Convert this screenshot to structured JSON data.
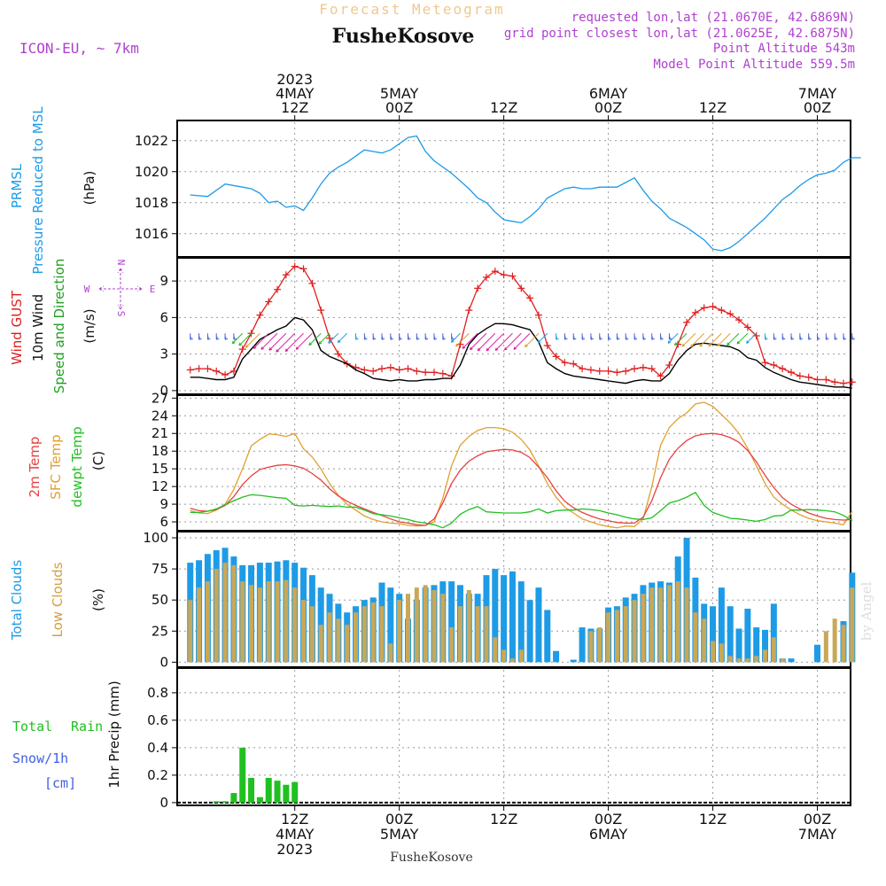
{
  "header": {
    "title": "Forecast Meteogram",
    "location": "FusheKosove",
    "model": "ICON-EU, ~ 7km",
    "requested": "requested lon,lat (21.0670E, 42.6869N)",
    "closest": "grid point closest lon,lat (21.0625E, 42.6875N)",
    "point_alt": "Point Altitude 543m",
    "model_alt": "Model Point Altitude 559.5m",
    "footer": "FusheKosove",
    "credit": "by Angel"
  },
  "time_axis": {
    "top_labels": [
      {
        "h": 12,
        "lines": [
          "2023",
          "4MAY",
          "12Z"
        ]
      },
      {
        "h": 24,
        "lines": [
          "5MAY",
          "00Z"
        ]
      },
      {
        "h": 36,
        "lines": [
          "12Z"
        ]
      },
      {
        "h": 48,
        "lines": [
          "6MAY",
          "00Z"
        ]
      },
      {
        "h": 60,
        "lines": [
          "12Z"
        ]
      },
      {
        "h": 72,
        "lines": [
          "7MAY",
          "00Z"
        ]
      }
    ],
    "bottom_labels": [
      {
        "h": 12,
        "lines": [
          "12Z",
          "4MAY",
          "2023"
        ]
      },
      {
        "h": 24,
        "lines": [
          "00Z",
          "5MAY"
        ]
      },
      {
        "h": 36,
        "lines": [
          "12Z"
        ]
      },
      {
        "h": 48,
        "lines": [
          "00Z",
          "6MAY"
        ]
      },
      {
        "h": 60,
        "lines": [
          "12Z"
        ]
      },
      {
        "h": 72,
        "lines": [
          "00Z",
          "7MAY"
        ]
      }
    ]
  },
  "panel_labels": {
    "pressure": {
      "lines": [
        "PRMSL",
        "Pressure Reduced to MSL"
      ],
      "unit": "(hPa)"
    },
    "wind": {
      "gust": "Wind GUST",
      "wind10": "10m Wind",
      "dir": "Speed and Direction",
      "unit": "(m/s)",
      "compass_w": "W",
      "compass_e": "E",
      "compass_n": "N",
      "compass_s": "S"
    },
    "temp": {
      "t2m": "2m Temp",
      "sfc": "SFC Temp",
      "dew": "dewpt Temp",
      "unit": "(C)"
    },
    "clouds": {
      "total": "Total Clouds",
      "low": "Low Clouds",
      "unit": "(%)"
    },
    "precip": {
      "total": "Total",
      "rain": "Rain",
      "snow": "Snow/1h",
      "cm": "[cm]",
      "unit": "1hr Precip (mm)"
    }
  },
  "colors": {
    "pressure": "#1e9be6",
    "gust": "#e02020",
    "wind": "#000000",
    "t2m": "#e84040",
    "sfc": "#e0a030",
    "dew": "#20c020",
    "total_cloud": "#1e9be6",
    "low_cloud": "#c8a858",
    "precip": "#20c020",
    "purple": "#b040d0",
    "title": "#f0c890"
  },
  "chart_data": [
    {
      "type": "line",
      "title": "PRMSL Pressure Reduced to MSL",
      "ylabel": "(hPa)",
      "ylim": [
        1014.5,
        1023.3
      ],
      "yticks": [
        1016,
        1018,
        1020,
        1022
      ],
      "x_hours": [
        0,
        2,
        3,
        4,
        6,
        7,
        8,
        9,
        10,
        11,
        12,
        13,
        14,
        15,
        16,
        17,
        18,
        19,
        20,
        21,
        22,
        23,
        24,
        25,
        26,
        27,
        28,
        30,
        31,
        32,
        33,
        34,
        35,
        36,
        37,
        38,
        39,
        40,
        41,
        42,
        43,
        44,
        45,
        46,
        47,
        48,
        49,
        50,
        51,
        52,
        53,
        54,
        55,
        56,
        57,
        58,
        59,
        60,
        61,
        62,
        63,
        64,
        65,
        66,
        67,
        68,
        69,
        70,
        71,
        72,
        73,
        74,
        75,
        76,
        77
      ],
      "series": [
        {
          "name": "PRMSL",
          "values": [
            1018.5,
            1018.4,
            1018.8,
            1019.2,
            1019.0,
            1018.9,
            1018.6,
            1018.0,
            1018.1,
            1017.7,
            1017.8,
            1017.5,
            1018.3,
            1019.2,
            1019.9,
            1020.3,
            1020.6,
            1021.0,
            1021.4,
            1021.3,
            1021.2,
            1021.4,
            1021.8,
            1022.2,
            1022.3,
            1021.3,
            1020.7,
            1019.9,
            1019.4,
            1018.9,
            1018.3,
            1018.0,
            1017.4,
            1016.9,
            1016.8,
            1016.7,
            1017.1,
            1017.6,
            1018.3,
            1018.6,
            1018.9,
            1019.0,
            1018.9,
            1018.9,
            1019.0,
            1019.0,
            1019.0,
            1019.3,
            1019.6,
            1018.8,
            1018.1,
            1017.6,
            1017.0,
            1016.7,
            1016.4,
            1016.0,
            1015.6,
            1015.0,
            1014.9,
            1015.1,
            1015.5,
            1016.0,
            1016.5,
            1017.0,
            1017.6,
            1018.2,
            1018.6,
            1019.1,
            1019.5,
            1019.8,
            1019.9,
            1020.1,
            1020.6,
            1020.9,
            1020.9
          ]
        }
      ]
    },
    {
      "type": "line",
      "title": "Wind GUST / 10m Wind Speed and Direction",
      "ylabel": "(m/s)",
      "ylim": [
        -0.3,
        10.9
      ],
      "yticks": [
        0,
        3,
        6,
        9
      ],
      "x_hours": [
        0,
        1,
        2,
        3,
        4,
        5,
        6,
        7,
        8,
        9,
        10,
        11,
        12,
        13,
        14,
        15,
        16,
        17,
        18,
        19,
        20,
        21,
        22,
        23,
        24,
        25,
        26,
        27,
        28,
        29,
        30,
        31,
        32,
        33,
        34,
        35,
        36,
        37,
        38,
        39,
        40,
        41,
        42,
        43,
        44,
        45,
        46,
        47,
        48,
        49,
        50,
        51,
        52,
        53,
        54,
        55,
        56,
        57,
        58,
        59,
        60,
        61,
        62,
        63,
        64,
        65,
        66,
        67,
        68,
        69,
        70,
        71,
        72,
        73,
        74,
        75,
        76
      ],
      "series": [
        {
          "name": "Wind GUST",
          "values": [
            1.7,
            1.8,
            1.8,
            1.6,
            1.3,
            1.6,
            3.4,
            4.7,
            6.2,
            7.3,
            8.3,
            9.5,
            10.2,
            10.0,
            8.8,
            6.6,
            4.3,
            3.0,
            2.2,
            1.9,
            1.7,
            1.6,
            1.8,
            1.9,
            1.7,
            1.8,
            1.6,
            1.5,
            1.5,
            1.4,
            1.2,
            3.8,
            6.6,
            8.4,
            9.3,
            9.8,
            9.5,
            9.4,
            8.4,
            7.6,
            6.2,
            3.7,
            2.8,
            2.3,
            2.2,
            1.8,
            1.7,
            1.6,
            1.6,
            1.5,
            1.6,
            1.8,
            1.9,
            1.8,
            1.2,
            2.1,
            3.8,
            5.6,
            6.4,
            6.8,
            6.9,
            6.6,
            6.3,
            5.8,
            5.2,
            4.5,
            2.3,
            2.1,
            1.8,
            1.5,
            1.2,
            1.1,
            0.9,
            0.9,
            0.7,
            0.6,
            0.7
          ]
        },
        {
          "name": "10m Wind",
          "values": [
            1.1,
            1.1,
            1.0,
            0.9,
            0.9,
            1.1,
            2.6,
            3.4,
            4.2,
            4.6,
            5.0,
            5.3,
            6.0,
            5.8,
            5.0,
            3.3,
            2.8,
            2.5,
            2.2,
            1.7,
            1.4,
            1.0,
            0.9,
            0.8,
            0.9,
            0.8,
            0.8,
            0.9,
            0.9,
            1.0,
            1.0,
            2.1,
            3.8,
            4.6,
            5.1,
            5.5,
            5.5,
            5.4,
            5.2,
            5.0,
            4.0,
            2.3,
            1.8,
            1.4,
            1.2,
            1.1,
            1.0,
            0.9,
            0.8,
            0.7,
            0.6,
            0.8,
            0.9,
            0.8,
            0.8,
            1.4,
            2.5,
            3.3,
            3.8,
            3.9,
            3.8,
            3.7,
            3.6,
            3.3,
            2.7,
            2.5,
            1.9,
            1.5,
            1.2,
            0.9,
            0.7,
            0.6,
            0.5,
            0.4,
            0.3,
            0.3,
            0.2
          ]
        }
      ]
    },
    {
      "type": "line",
      "title": "2m Temp / SFC Temp / dewpt Temp",
      "ylabel": "(C)",
      "ylim": [
        4.5,
        27.5
      ],
      "yticks": [
        6,
        9,
        12,
        15,
        18,
        21,
        24,
        27
      ],
      "x_hours": [
        0,
        1,
        2,
        3,
        4,
        5,
        6,
        7,
        8,
        9,
        10,
        11,
        12,
        13,
        14,
        15,
        16,
        17,
        18,
        19,
        20,
        21,
        22,
        23,
        24,
        25,
        26,
        27,
        28,
        29,
        30,
        31,
        32,
        33,
        34,
        35,
        36,
        37,
        38,
        39,
        40,
        41,
        42,
        43,
        44,
        45,
        46,
        47,
        48,
        49,
        50,
        51,
        52,
        53,
        54,
        55,
        56,
        57,
        58,
        59,
        60,
        61,
        62,
        63,
        64,
        65,
        66,
        67,
        68,
        69,
        70,
        71,
        72,
        73,
        74,
        75,
        76
      ],
      "series": [
        {
          "name": "2m Temp",
          "values": [
            8.3,
            7.9,
            7.8,
            8.1,
            8.8,
            10.3,
            12.3,
            13.8,
            14.9,
            15.3,
            15.6,
            15.7,
            15.5,
            15.1,
            14.2,
            13.1,
            11.6,
            10.4,
            9.5,
            8.8,
            8.2,
            7.6,
            7.1,
            6.5,
            6.0,
            5.8,
            5.5,
            5.4,
            6.5,
            9.2,
            12.5,
            14.8,
            16.3,
            17.2,
            17.9,
            18.1,
            18.3,
            18.2,
            17.8,
            16.9,
            15.3,
            13.5,
            11.3,
            9.5,
            8.4,
            7.6,
            7.0,
            6.5,
            6.2,
            5.9,
            5.8,
            5.8,
            6.8,
            9.6,
            13.5,
            16.6,
            18.5,
            19.8,
            20.6,
            20.9,
            21.0,
            20.8,
            20.3,
            19.5,
            18.1,
            16.2,
            13.9,
            11.8,
            10.1,
            9.0,
            8.2,
            7.5,
            7.0,
            6.6,
            6.4,
            6.3,
            6.4
          ]
        },
        {
          "name": "SFC Temp",
          "values": [
            7.9,
            7.5,
            7.4,
            8.0,
            9.0,
            11.5,
            15.0,
            18.9,
            20.0,
            20.9,
            20.8,
            20.5,
            21.0,
            18.4,
            17.0,
            15.0,
            12.5,
            10.5,
            9.0,
            8.0,
            7.0,
            6.4,
            6.0,
            5.8,
            5.7,
            5.4,
            5.3,
            5.4,
            6.0,
            10.0,
            15.5,
            19.0,
            20.5,
            21.5,
            22.0,
            22.0,
            21.8,
            21.2,
            20.0,
            18.2,
            15.5,
            12.5,
            10.2,
            8.5,
            7.5,
            6.5,
            6.0,
            5.5,
            5.2,
            5.0,
            5.3,
            5.2,
            6.5,
            12.0,
            19.0,
            22.0,
            23.5,
            24.5,
            26.0,
            26.3,
            25.6,
            24.2,
            22.8,
            21.0,
            18.5,
            15.5,
            12.5,
            10.2,
            9.0,
            8.0,
            7.2,
            6.6,
            6.2,
            6.0,
            5.8,
            5.5,
            7.8
          ]
        },
        {
          "name": "dewpt Temp",
          "values": [
            7.6,
            7.6,
            7.8,
            8.2,
            8.9,
            9.6,
            10.2,
            10.6,
            10.5,
            10.3,
            10.1,
            10.0,
            8.8,
            8.7,
            8.8,
            8.7,
            8.6,
            8.7,
            8.5,
            8.5,
            8.0,
            7.4,
            7.2,
            7.0,
            6.7,
            6.4,
            6.0,
            5.8,
            5.5,
            5.0,
            5.8,
            7.3,
            8.1,
            8.6,
            7.7,
            7.6,
            7.5,
            7.5,
            7.5,
            7.7,
            8.2,
            7.5,
            7.9,
            8.0,
            8.0,
            8.2,
            8.1,
            7.9,
            7.5,
            7.2,
            6.8,
            6.5,
            6.4,
            6.7,
            7.9,
            9.2,
            9.6,
            10.2,
            11.0,
            8.8,
            7.6,
            7.1,
            6.6,
            6.5,
            6.3,
            6.1,
            6.4,
            7.0,
            7.1,
            8.0,
            8.0,
            8.1,
            8.0,
            7.9,
            7.7,
            7.1,
            6.2
          ]
        }
      ]
    },
    {
      "type": "bar",
      "title": "Total Clouds / Low Clouds",
      "ylabel": "(%)",
      "ylim": [
        -4,
        105
      ],
      "yticks": [
        0,
        25,
        50,
        75,
        100
      ],
      "x_hours": [
        0,
        1,
        2,
        3,
        4,
        5,
        6,
        7,
        8,
        9,
        10,
        11,
        12,
        13,
        14,
        15,
        16,
        17,
        18,
        19,
        20,
        21,
        22,
        23,
        24,
        25,
        26,
        27,
        28,
        29,
        30,
        31,
        32,
        33,
        34,
        35,
        36,
        37,
        38,
        39,
        40,
        41,
        42,
        43,
        44,
        45,
        46,
        47,
        48,
        49,
        50,
        51,
        52,
        53,
        54,
        55,
        56,
        57,
        58,
        59,
        60,
        61,
        62,
        63,
        64,
        65,
        66,
        67,
        68,
        69,
        70,
        71,
        72,
        73,
        74,
        75,
        76
      ],
      "series": [
        {
          "name": "Total Clouds",
          "values": [
            80,
            82,
            87,
            90,
            92,
            85,
            78,
            78,
            80,
            80,
            81,
            82,
            80,
            76,
            70,
            60,
            55,
            47,
            40,
            45,
            50,
            52,
            64,
            60,
            55,
            35,
            50,
            60,
            62,
            65,
            65,
            62,
            55,
            55,
            70,
            75,
            70,
            73,
            65,
            50,
            60,
            42,
            9,
            0,
            2,
            28,
            27,
            27,
            44,
            45,
            52,
            55,
            62,
            64,
            65,
            64,
            85,
            100,
            68,
            47,
            45,
            60,
            45,
            27,
            43,
            28,
            26,
            47,
            3,
            3,
            0,
            0,
            14,
            0,
            0,
            33,
            72
          ]
        },
        {
          "name": "Low Clouds",
          "values": [
            50,
            60,
            65,
            75,
            80,
            78,
            65,
            62,
            60,
            65,
            65,
            66,
            60,
            50,
            45,
            30,
            40,
            35,
            30,
            40,
            45,
            48,
            45,
            15,
            50,
            55,
            60,
            62,
            58,
            55,
            28,
            45,
            58,
            45,
            45,
            20,
            10,
            3,
            10,
            0,
            0,
            0,
            0,
            0,
            0,
            0,
            25,
            28,
            40,
            42,
            45,
            50,
            55,
            60,
            60,
            62,
            65,
            60,
            40,
            35,
            17,
            15,
            5,
            3,
            3,
            5,
            10,
            20,
            3,
            0,
            0,
            0,
            0,
            25,
            35,
            30,
            60
          ]
        }
      ]
    },
    {
      "type": "bar",
      "title": "1hr Precip",
      "ylabel": "1hr Precip (mm)",
      "ylim": [
        -0.02,
        0.98
      ],
      "yticks": [
        0,
        0.2,
        0.4,
        0.6,
        0.8
      ],
      "x_hours": [
        3,
        4,
        5,
        6,
        7,
        8,
        9,
        10,
        11,
        12
      ],
      "series": [
        {
          "name": "Total Rain",
          "values": [
            0.01,
            0.01,
            0.07,
            0.4,
            0.18,
            0.04,
            0.18,
            0.16,
            0.13,
            0.15
          ]
        }
      ]
    }
  ]
}
